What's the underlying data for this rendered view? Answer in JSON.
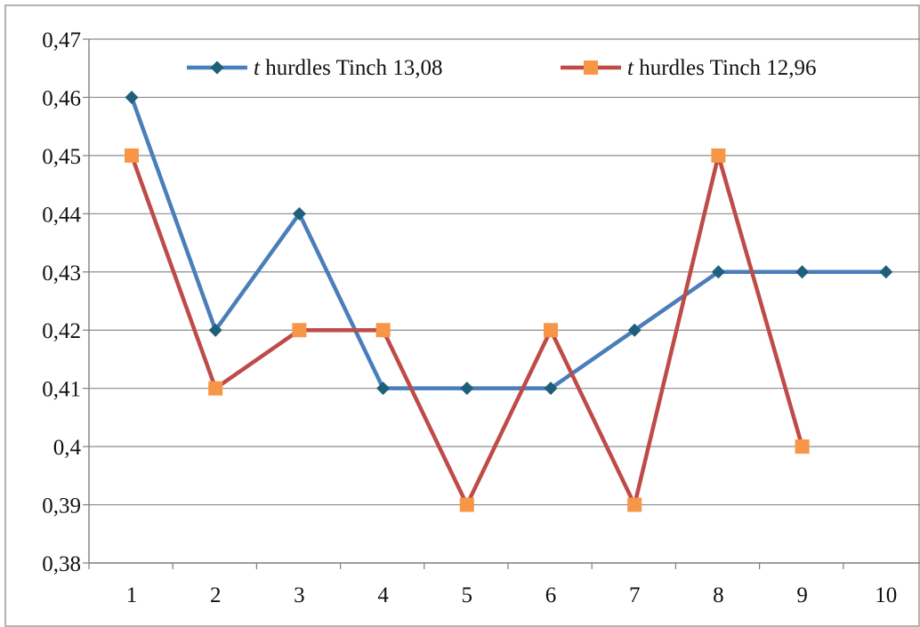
{
  "chart_data": {
    "type": "line",
    "title": "",
    "xlabel": "",
    "ylabel": "",
    "categories": [
      "1",
      "2",
      "3",
      "4",
      "5",
      "6",
      "7",
      "8",
      "9",
      "10"
    ],
    "ylim": [
      0.38,
      0.47
    ],
    "yticks": [
      0.38,
      0.39,
      0.4,
      0.41,
      0.42,
      0.43,
      0.44,
      0.45,
      0.46,
      0.47
    ],
    "ytick_labels": [
      "0,38",
      "0,39",
      "0,4",
      "0,41",
      "0,42",
      "0,43",
      "0,44",
      "0,45",
      "0,46",
      "0,47"
    ],
    "grid": "horizontal",
    "legend_position": "top",
    "series": [
      {
        "name": "t hurdles Tinch 13,08",
        "legend_var": "t",
        "legend_rest": " hurdles Tinch 13,08",
        "color": "#4a7ebb",
        "marker": "diamond",
        "marker_color": "#1f5f7a",
        "values": [
          0.46,
          0.42,
          0.44,
          0.41,
          0.41,
          0.41,
          0.42,
          0.43,
          0.43,
          0.43
        ]
      },
      {
        "name": "t hurdles Tinch 12,96",
        "legend_var": "t",
        "legend_rest": " hurdles Tinch 12,96",
        "color": "#be4b48",
        "marker": "square",
        "marker_color": "#f79646",
        "values": [
          0.45,
          0.41,
          0.42,
          0.42,
          0.39,
          0.42,
          0.39,
          0.45,
          0.4,
          null
        ]
      }
    ]
  }
}
